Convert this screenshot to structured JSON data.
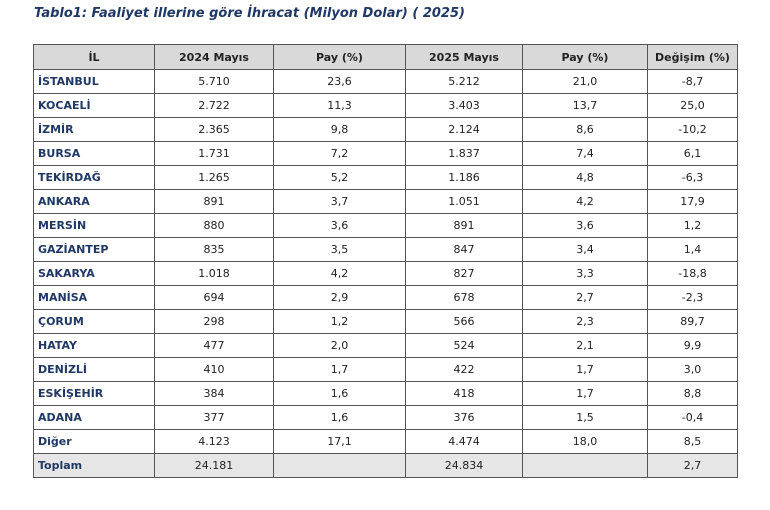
{
  "title": "Tablo1: Faaliyet illerine göre İhracat (Milyon Dolar) ( 2025)",
  "headers": [
    "İL",
    "2024 Mayıs",
    "Pay  (%)",
    "2025 Mayıs",
    "Pay  (%)",
    "Değişim (%)"
  ],
  "rows": [
    [
      "İSTANBUL",
      "5.710",
      "23,6",
      "5.212",
      "21,0",
      "-8,7"
    ],
    [
      "KOCAELİ",
      "2.722",
      "11,3",
      "3.403",
      "13,7",
      "25,0"
    ],
    [
      "İZMİR",
      "2.365",
      "9,8",
      "2.124",
      "8,6",
      "-10,2"
    ],
    [
      "BURSA",
      "1.731",
      "7,2",
      "1.837",
      "7,4",
      "6,1"
    ],
    [
      "TEKİRDAĞ",
      "1.265",
      "5,2",
      "1.186",
      "4,8",
      "-6,3"
    ],
    [
      "ANKARA",
      "891",
      "3,7",
      "1.051",
      "4,2",
      "17,9"
    ],
    [
      "MERSİN",
      "880",
      "3,6",
      "891",
      "3,6",
      "1,2"
    ],
    [
      "GAZİANTEP",
      "835",
      "3,5",
      "847",
      "3,4",
      "1,4"
    ],
    [
      "SAKARYA",
      "1.018",
      "4,2",
      "827",
      "3,3",
      "-18,8"
    ],
    [
      "MANİSA",
      "694",
      "2,9",
      "678",
      "2,7",
      "-2,3"
    ],
    [
      "ÇORUM",
      "298",
      "1,2",
      "566",
      "2,3",
      "89,7"
    ],
    [
      "HATAY",
      "477",
      "2,0",
      "524",
      "2,1",
      "9,9"
    ],
    [
      "DENİZLİ",
      "410",
      "1,7",
      "422",
      "1,7",
      "3,0"
    ],
    [
      "ESKİŞEHİR",
      "384",
      "1,6",
      "418",
      "1,7",
      "8,8"
    ],
    [
      "ADANA",
      "377",
      "1,6",
      "376",
      "1,5",
      "-0,4"
    ],
    [
      "Diğer",
      "4.123",
      "17,1",
      "4.474",
      "18,0",
      "8,5"
    ]
  ],
  "total": [
    "Toplam",
    "24.181",
    "",
    "24.834",
    "",
    "2,7"
  ]
}
